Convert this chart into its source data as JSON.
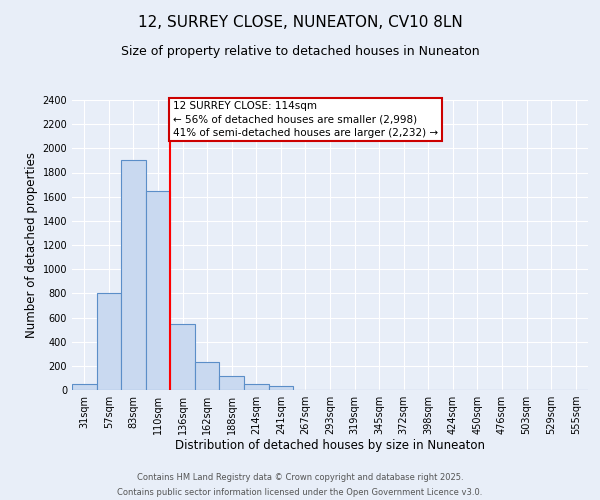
{
  "title": "12, SURREY CLOSE, NUNEATON, CV10 8LN",
  "subtitle": "Size of property relative to detached houses in Nuneaton",
  "xlabel": "Distribution of detached houses by size in Nuneaton",
  "ylabel": "Number of detached properties",
  "bin_labels": [
    "31sqm",
    "57sqm",
    "83sqm",
    "110sqm",
    "136sqm",
    "162sqm",
    "188sqm",
    "214sqm",
    "241sqm",
    "267sqm",
    "293sqm",
    "319sqm",
    "345sqm",
    "372sqm",
    "398sqm",
    "424sqm",
    "450sqm",
    "476sqm",
    "503sqm",
    "529sqm",
    "555sqm"
  ],
  "bar_heights": [
    50,
    800,
    1900,
    1650,
    550,
    235,
    115,
    50,
    30,
    0,
    0,
    0,
    0,
    0,
    0,
    0,
    0,
    0,
    0,
    0,
    0
  ],
  "bar_color": "#c9d9f0",
  "bar_edge_color": "#5b8ec8",
  "red_line_bin_index": 3,
  "ylim": [
    0,
    2400
  ],
  "yticks": [
    0,
    200,
    400,
    600,
    800,
    1000,
    1200,
    1400,
    1600,
    1800,
    2000,
    2200,
    2400
  ],
  "annotation_title": "12 SURREY CLOSE: 114sqm",
  "annotation_line1": "← 56% of detached houses are smaller (2,998)",
  "annotation_line2": "41% of semi-detached houses are larger (2,232) →",
  "annotation_box_color": "#ffffff",
  "annotation_box_edge": "#cc0000",
  "footer1": "Contains HM Land Registry data © Crown copyright and database right 2025.",
  "footer2": "Contains public sector information licensed under the Open Government Licence v3.0.",
  "bg_color": "#e8eef8",
  "plot_bg_color": "#e8eef8",
  "grid_color": "#ffffff",
  "title_fontsize": 11,
  "subtitle_fontsize": 9,
  "axis_label_fontsize": 8.5,
  "tick_fontsize": 7,
  "footer_fontsize": 6,
  "annotation_fontsize": 7.5
}
